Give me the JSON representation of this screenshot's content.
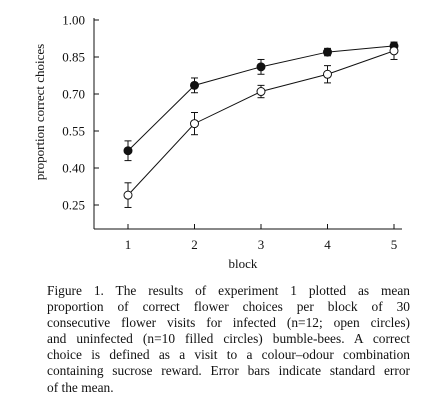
{
  "chart_data": {
    "type": "line",
    "xlabel": "block",
    "ylabel": "proportion correct choices",
    "x": [
      1,
      2,
      3,
      4,
      5
    ],
    "xticks": [
      "1",
      "2",
      "3",
      "4",
      "5"
    ],
    "yticks": [
      "1.00",
      "0.85",
      "0.70",
      "0.55",
      "0.40",
      "0.25"
    ],
    "ylim": [
      0.22,
      1.0
    ],
    "grid": false,
    "series": [
      {
        "marker": "filled-circle",
        "values": [
          0.47,
          0.735,
          0.81,
          0.87,
          0.895
        ],
        "error": [
          0.04,
          0.03,
          0.03,
          0.015,
          0.015
        ]
      },
      {
        "marker": "open-circle",
        "values": [
          0.29,
          0.58,
          0.71,
          0.78,
          0.875
        ],
        "error": [
          0.05,
          0.045,
          0.025,
          0.035,
          0.035
        ]
      }
    ]
  },
  "caption": {
    "lines": [
      "Figure 1. The results of experiment 1 plotted as mean",
      "proportion of correct flower choices per block of 30",
      "consecutive flower visits for infected (n=12; open circles)",
      "and uninfected (n=10 filled circles) bumble-bees. A correct",
      "choice is defined as a visit to a colour–odour combination",
      "containing sucrose reward. Error bars indicate standard error",
      "of the mean."
    ]
  }
}
